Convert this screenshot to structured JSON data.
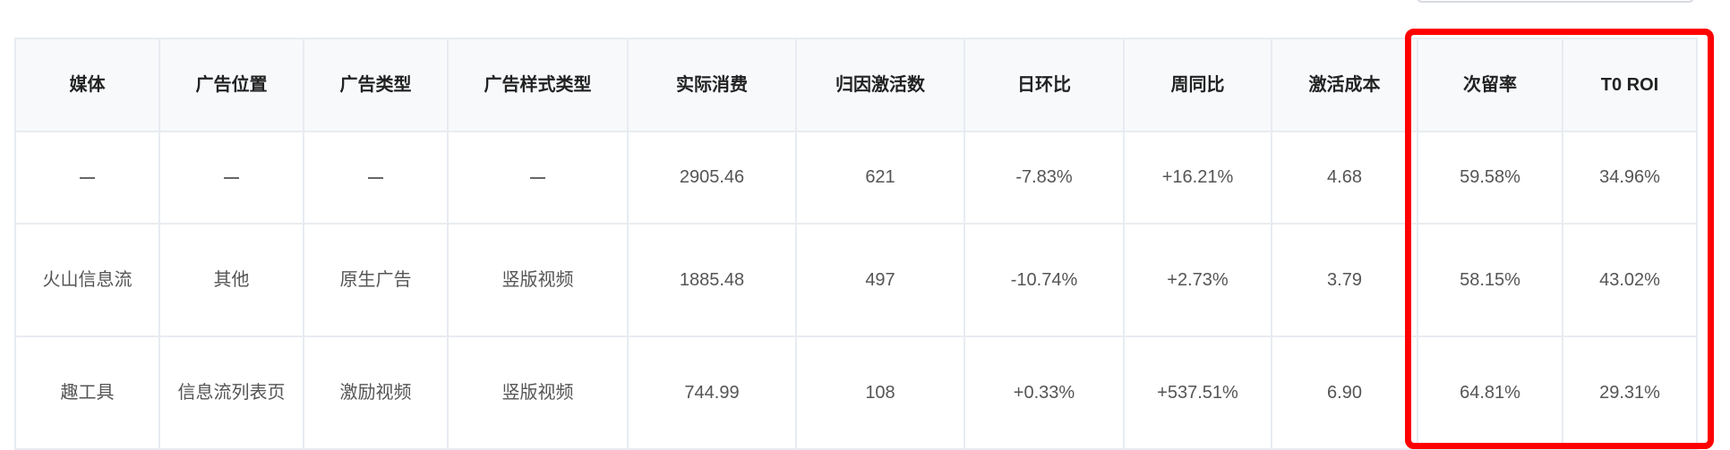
{
  "table": {
    "headers": [
      "媒体",
      "广告位置",
      "广告类型",
      "广告样式类型",
      "实际消费",
      "归因激活数",
      "日环比",
      "周同比",
      "激活成本",
      "次留率",
      "T0 ROI"
    ],
    "total_row": {
      "media": "",
      "ad_position": "",
      "ad_type": "",
      "ad_style_type": "",
      "spend": "2905.46",
      "activations": "621",
      "day_over_day": "-7.83%",
      "week_over_week": "+16.21%",
      "activation_cost": "4.68",
      "next_day_retention": "59.58%",
      "t0_roi": "34.96%"
    },
    "rows": [
      {
        "media": "火山信息流",
        "ad_position": "其他",
        "ad_type": "原生广告",
        "ad_style_type": "竖版视频",
        "spend": "1885.48",
        "activations": "497",
        "day_over_day": "-10.74%",
        "week_over_week": "+2.73%",
        "activation_cost": "3.79",
        "next_day_retention": "58.15%",
        "t0_roi": "43.02%"
      },
      {
        "media": "趣工具",
        "ad_position": "信息流列表页",
        "ad_type": "激励视频",
        "ad_style_type": "竖版视频",
        "spend": "744.99",
        "activations": "108",
        "day_over_day": "+0.33%",
        "week_over_week": "+537.51%",
        "activation_cost": "6.90",
        "next_day_retention": "64.81%",
        "t0_roi": "29.31%"
      }
    ]
  },
  "colors": {
    "positive_change": "#f5222d",
    "negative_change": "#52c41a",
    "highlight_border": "#ff0000",
    "header_background": "#f7f9fb",
    "grid_line": "#e8ecf1"
  },
  "icons": {
    "empty_cell": "dash-icon"
  }
}
